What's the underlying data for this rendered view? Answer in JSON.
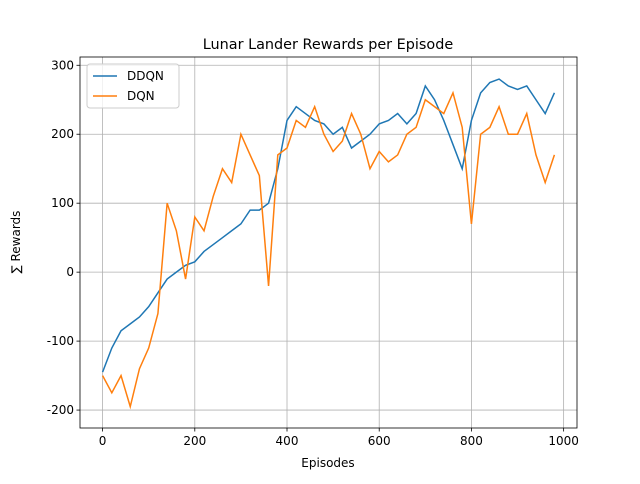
{
  "chart_data": {
    "type": "line",
    "title": "Lunar Lander Rewards per Episode",
    "xlabel": "Episodes",
    "ylabel": "∑ Rewards",
    "x": [
      0,
      20,
      40,
      60,
      80,
      100,
      120,
      140,
      160,
      180,
      200,
      220,
      240,
      260,
      280,
      300,
      320,
      340,
      360,
      380,
      400,
      420,
      440,
      460,
      480,
      500,
      520,
      540,
      560,
      580,
      600,
      620,
      640,
      660,
      680,
      700,
      720,
      740,
      760,
      780,
      800,
      820,
      840,
      860,
      880,
      900,
      920,
      940,
      960,
      980
    ],
    "series": [
      {
        "name": "DDQN",
        "color": "#1f77b4",
        "values": [
          -145,
          -110,
          -85,
          -75,
          -65,
          -50,
          -30,
          -10,
          0,
          10,
          15,
          30,
          40,
          50,
          60,
          70,
          90,
          90,
          100,
          150,
          220,
          240,
          230,
          220,
          215,
          200,
          210,
          180,
          190,
          200,
          215,
          220,
          230,
          215,
          230,
          270,
          250,
          220,
          185,
          150,
          220,
          260,
          275,
          280,
          270,
          265,
          270,
          250,
          230,
          260
        ]
      },
      {
        "name": "DQN",
        "color": "#ff7f0e",
        "values": [
          -150,
          -175,
          -150,
          -195,
          -140,
          -110,
          -60,
          100,
          60,
          -10,
          80,
          60,
          110,
          150,
          130,
          200,
          170,
          140,
          -20,
          170,
          180,
          220,
          210,
          240,
          200,
          175,
          190,
          230,
          200,
          150,
          175,
          160,
          170,
          200,
          210,
          250,
          240,
          230,
          260,
          210,
          70,
          200,
          210,
          240,
          200,
          200,
          230,
          170,
          130,
          170
        ]
      }
    ],
    "xlim": [
      -49,
      1029
    ],
    "ylim": [
      -226,
      312
    ],
    "xticks": [
      0,
      200,
      400,
      600,
      800,
      1000
    ],
    "yticks": [
      -200,
      -100,
      0,
      100,
      200,
      300
    ],
    "grid": true,
    "legend": "upper left"
  }
}
